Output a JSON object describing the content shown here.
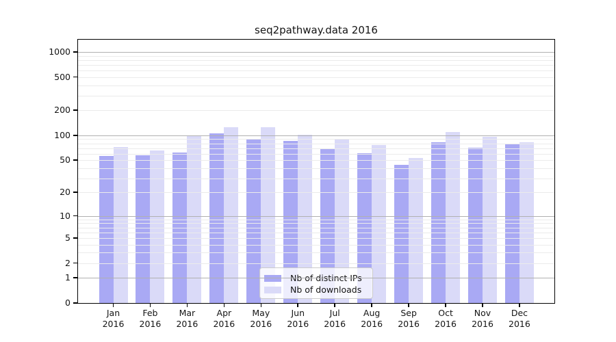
{
  "title": "seq2pathway.data 2016",
  "chart_data": {
    "type": "bar",
    "title": "seq2pathway.data 2016",
    "xlabel": "",
    "ylabel": "",
    "yscale": "log1p",
    "ylim": [
      0,
      1400
    ],
    "categories": [
      "Jan",
      "Feb",
      "Mar",
      "Apr",
      "May",
      "Jun",
      "Jul",
      "Aug",
      "Sep",
      "Oct",
      "Nov",
      "Dec"
    ],
    "year": "2016",
    "series": [
      {
        "name": "Nb of distinct IPs",
        "color": "#a9a9f4",
        "values": [
          56,
          57,
          62,
          105,
          88,
          86,
          69,
          61,
          44,
          83,
          71,
          77
        ]
      },
      {
        "name": "Nb of downloads",
        "color": "#dadaf8",
        "values": [
          72,
          65,
          97,
          126,
          126,
          102,
          88,
          76,
          53,
          110,
          95,
          83
        ]
      }
    ],
    "y_ticks": [
      {
        "value": 0,
        "label": "0"
      },
      {
        "value": 1,
        "label": "1"
      },
      {
        "value": 2,
        "label": "2"
      },
      {
        "value": 5,
        "label": "5"
      },
      {
        "value": 10,
        "label": "10"
      },
      {
        "value": 20,
        "label": "20"
      },
      {
        "value": 50,
        "label": "50"
      },
      {
        "value": 100,
        "label": "100"
      },
      {
        "value": 200,
        "label": "200"
      },
      {
        "value": 500,
        "label": "500"
      },
      {
        "value": 1000,
        "label": "1000"
      }
    ],
    "grid": {
      "orientation": "horizontal",
      "drawn_on_top": true,
      "major_values": [
        1,
        10,
        100,
        1000
      ],
      "minor_values": [
        2,
        3,
        4,
        5,
        6,
        7,
        8,
        9,
        20,
        30,
        40,
        50,
        60,
        70,
        80,
        90,
        200,
        300,
        400,
        500,
        600,
        700,
        800,
        900
      ],
      "minor_color": "#ebebeb",
      "major_color": "#b0b0b0"
    },
    "legend_position": "bottom-center-inside"
  },
  "colors": {
    "background": "#ffffff",
    "spine": "#000000",
    "text": "#141414",
    "legend_border": "#cbcbcb",
    "legend_background": "rgba(255,255,255,0.8)"
  }
}
